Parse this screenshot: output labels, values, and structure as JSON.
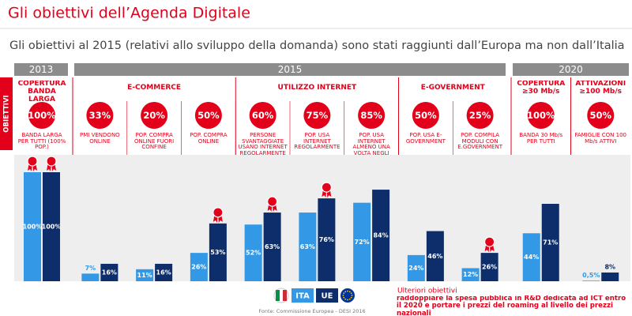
{
  "chart_data": {
    "type": "bar",
    "title": "Gli obiettivi dell’Agenda Digitale",
    "subtitle": "Gli obiettivi al 2015 (relativi allo sviluppo della domanda) sono stati raggiunti dall’Europa ma non dall’Italia",
    "side_label": "OBIETTIVI",
    "periods": [
      {
        "label": "2013",
        "columns": [
          0,
          0
        ]
      },
      {
        "label": "2015",
        "columns": [
          1,
          8
        ]
      },
      {
        "label": "2020",
        "columns": [
          9,
          10
        ]
      }
    ],
    "groups": [
      {
        "label": "COPERTURA BANDA LARGA",
        "columns": [
          0,
          0
        ]
      },
      {
        "label": "E-COMMERCE",
        "columns": [
          1,
          3
        ]
      },
      {
        "label": "UTILIZZO INTERNET",
        "columns": [
          4,
          6
        ]
      },
      {
        "label": "E-GOVERNMENT",
        "columns": [
          7,
          8
        ]
      },
      {
        "label": "COPERTURA ≥30 Mb/s",
        "columns": [
          9,
          9
        ]
      },
      {
        "label": "ATTIVAZIONI ≥100 Mb/s",
        "columns": [
          10,
          10
        ]
      }
    ],
    "targets": [
      100,
      33,
      20,
      50,
      60,
      75,
      85,
      50,
      25,
      100,
      50
    ],
    "target_labels": [
      "100%",
      "33%",
      "20%",
      "50%",
      "60%",
      "75%",
      "85%",
      "50%",
      "25%",
      "100%",
      "50%"
    ],
    "categories": [
      "BANDA LARGA PER TUTTI (100% POP.)",
      "PMI VENDONO ONLINE",
      "POP. COMPRA ONLINE FUORI CONFINE",
      "POP. COMPRA ONLINE",
      "PERSONE SVANTAGGIATE USANO INTERNET REGOLARMENTE",
      "POP. USA INTERNET REGOLARMENTE",
      "POP. USA INTERNET ALMENO UNA VOLTA NEGLI ULTIMI 12 MESI",
      "POP. USA E-GOVERNMENT",
      "POP. COMPILA MODULI CON E.GOVERNMENT",
      "BANDA 30 Mb/s PER TUTTI",
      "FAMIGLIE CON 100 Mb/s ATTIVI"
    ],
    "series": [
      {
        "name": "ITA",
        "color": "#3399e6",
        "values": [
          100,
          7,
          11,
          26,
          52,
          63,
          72,
          24,
          12,
          44,
          0.5
        ],
        "value_labels": [
          "100%",
          "7%",
          "11%",
          "26%",
          "52%",
          "63%",
          "72%",
          "24%",
          "12%",
          "44%",
          "0,5%"
        ]
      },
      {
        "name": "UE",
        "color": "#0d2d6b",
        "values": [
          100,
          16,
          16,
          53,
          63,
          76,
          84,
          46,
          26,
          71,
          8
        ],
        "value_labels": [
          "100%",
          "16%",
          "16%",
          "53%",
          "63%",
          "76%",
          "84%",
          "46%",
          "26%",
          "71%",
          "8%"
        ]
      }
    ],
    "ylim": [
      0,
      100
    ],
    "source": "Fonte: Commissione Europea - DESI 2016",
    "note_title": "Ulteriori obiettivi",
    "note": "raddoppiare la spesa pubblica in R&D dedicata ad ICT entro il 2020 e portare i prezzi del roaming al livello dei prezzi nazionali"
  }
}
